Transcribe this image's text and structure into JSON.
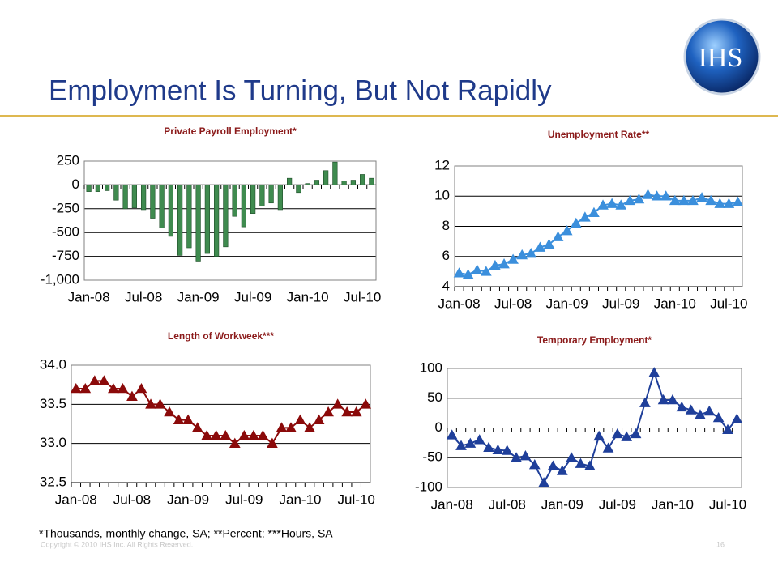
{
  "title": "Employment Is Turning, But Not Rapidly",
  "logo": "IHS",
  "footnote": "*Thousands, monthly change, SA; **Percent; ***Hours, SA",
  "copyright": "Copyright © 2010 IHS Inc. All Rights Reserved.",
  "page_number": "16",
  "chart_data": [
    {
      "type": "bar",
      "title": "Private Payroll Employment*",
      "categories": [
        "Jan-08",
        null,
        null,
        null,
        null,
        null,
        "Jul-08",
        null,
        null,
        null,
        null,
        null,
        "Jan-09",
        null,
        null,
        null,
        null,
        null,
        "Jul-09",
        null,
        null,
        null,
        null,
        null,
        "Jan-10",
        null,
        null,
        null,
        null,
        null,
        "Jul-10",
        null
      ],
      "values": [
        -70,
        -70,
        -60,
        -160,
        -250,
        -240,
        -260,
        -350,
        -450,
        -540,
        -740,
        -660,
        -800,
        -720,
        -750,
        -650,
        -330,
        -440,
        -300,
        -220,
        -190,
        -260,
        70,
        -80,
        15,
        50,
        150,
        240,
        40,
        50,
        110,
        70
      ],
      "color": "#3f8b4f",
      "ylim": [
        -1000,
        250
      ],
      "yticks": [
        250,
        0,
        -250,
        -500,
        -750,
        {
          "value": -1000,
          "label": "-1,000"
        }
      ],
      "grid": true
    },
    {
      "type": "line",
      "title": "Unemployment Rate**",
      "categories": [
        "Jan-08",
        null,
        null,
        null,
        null,
        null,
        "Jul-08",
        null,
        null,
        null,
        null,
        null,
        "Jan-09",
        null,
        null,
        null,
        null,
        null,
        "Jul-09",
        null,
        null,
        null,
        null,
        null,
        "Jan-10",
        null,
        null,
        null,
        null,
        null,
        "Jul-10",
        null
      ],
      "values": [
        4.9,
        4.8,
        5.1,
        5.0,
        5.4,
        5.5,
        5.8,
        6.1,
        6.2,
        6.6,
        6.8,
        7.3,
        7.7,
        8.2,
        8.6,
        8.9,
        9.4,
        9.5,
        9.4,
        9.7,
        9.8,
        10.1,
        10.0,
        10.0,
        9.7,
        9.7,
        9.7,
        9.9,
        9.7,
        9.5,
        9.5,
        9.6
      ],
      "color": "#3b8fdc",
      "ylim": [
        4,
        12
      ],
      "yticks": [
        12,
        10,
        8,
        6,
        4
      ],
      "grid": true
    },
    {
      "type": "line",
      "title": "Length of Workweek***",
      "categories": [
        "Jan-08",
        null,
        null,
        null,
        null,
        null,
        "Jul-08",
        null,
        null,
        null,
        null,
        null,
        "Jan-09",
        null,
        null,
        null,
        null,
        null,
        "Jul-09",
        null,
        null,
        null,
        null,
        null,
        "Jan-10",
        null,
        null,
        null,
        null,
        null,
        "Jul-10",
        null
      ],
      "values": [
        33.7,
        33.7,
        33.8,
        33.8,
        33.7,
        33.7,
        33.6,
        33.7,
        33.5,
        33.5,
        33.4,
        33.3,
        33.3,
        33.2,
        33.1,
        33.1,
        33.1,
        33.0,
        33.1,
        33.1,
        33.1,
        33.0,
        33.2,
        33.2,
        33.3,
        33.2,
        33.3,
        33.4,
        33.5,
        33.4,
        33.4,
        33.5
      ],
      "color": "#8b0a0a",
      "ylim": [
        32.5,
        34
      ],
      "yticks": [
        {
          "value": 34,
          "label": "34.0"
        },
        33.5,
        {
          "value": 33,
          "label": "33.0"
        },
        32.5
      ],
      "grid": true
    },
    {
      "type": "line",
      "title": "Temporary Employment*",
      "categories": [
        "Jan-08",
        null,
        null,
        null,
        null,
        null,
        "Jul-08",
        null,
        null,
        null,
        null,
        null,
        "Jan-09",
        null,
        null,
        null,
        null,
        null,
        "Jul-09",
        null,
        null,
        null,
        null,
        null,
        "Jan-10",
        null,
        null,
        null,
        null,
        null,
        "Jul-10",
        null
      ],
      "values": [
        -12,
        -30,
        -26,
        -20,
        -33,
        -37,
        -38,
        -50,
        -47,
        -62,
        -92,
        -64,
        -72,
        -50,
        -60,
        -64,
        -14,
        -34,
        -10,
        -15,
        -10,
        42,
        93,
        47,
        47,
        35,
        30,
        22,
        28,
        17,
        -3,
        15
      ],
      "color": "#1f3f9a",
      "ylim": [
        -100,
        100
      ],
      "yticks": [
        100,
        50,
        0,
        -50,
        -100
      ],
      "grid": true
    }
  ]
}
